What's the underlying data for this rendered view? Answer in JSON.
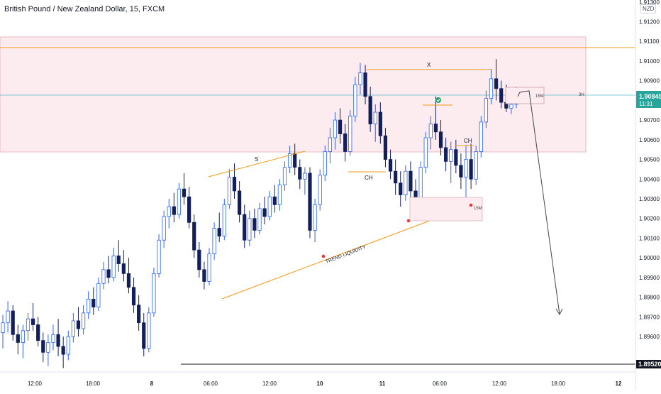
{
  "header": {
    "title": "British Pound / New Zealand Dollar, 15, FXCM",
    "currency": "NZD"
  },
  "colors": {
    "up_candle": "#ffffff",
    "up_border": "#2962ff",
    "down_candle": "#131f5b",
    "annotation_orange": "#f59a14",
    "zone_fill": "#fcebef",
    "zone_border": "#e8b9c3",
    "price_line": "#5fb8c9",
    "current_price_badge": "#26a69a",
    "support_line": "#131722",
    "check_green": "#22a45d",
    "pivot_red": "#e53935"
  },
  "chart_data": {
    "type": "candlestick",
    "symbol": "GBPNZD",
    "timeframe": "15",
    "ylim": [
      1.8942,
      1.9131
    ],
    "y_ticks": [
      "1.91300",
      "1.91200",
      "1.91100",
      "1.91000",
      "1.90900",
      "1.90800",
      "1.90700",
      "1.90600",
      "1.90500",
      "1.90400",
      "1.90300",
      "1.90200",
      "1.90100",
      "1.90000",
      "1.89900",
      "1.89800",
      "1.89700",
      "1.89600"
    ],
    "x_ticks": [
      "12:00",
      "18:00",
      "8",
      "06:00",
      "12:00",
      "10",
      "11",
      "06:00",
      "12:00",
      "18:00",
      "12"
    ],
    "current_price": "1.90845",
    "countdown": "11:31",
    "marked_level": "1.89520",
    "candles": [
      [
        1.8962,
        1.8971,
        1.8954,
        1.8967
      ],
      [
        1.8967,
        1.8978,
        1.8962,
        1.8973
      ],
      [
        1.8973,
        1.8976,
        1.8958,
        1.8961
      ],
      [
        1.8961,
        1.8966,
        1.8951,
        1.8957
      ],
      [
        1.8957,
        1.8966,
        1.8949,
        1.8963
      ],
      [
        1.8963,
        1.8972,
        1.8958,
        1.8969
      ],
      [
        1.8969,
        1.8977,
        1.8963,
        1.8966
      ],
      [
        1.8966,
        1.897,
        1.8955,
        1.8958
      ],
      [
        1.8958,
        1.8962,
        1.8947,
        1.8952
      ],
      [
        1.8952,
        1.8961,
        1.8945,
        1.8957
      ],
      [
        1.8957,
        1.8966,
        1.8953,
        1.8961
      ],
      [
        1.8961,
        1.8969,
        1.895,
        1.8955
      ],
      [
        1.8955,
        1.896,
        1.8944,
        1.8951
      ],
      [
        1.8951,
        1.8963,
        1.8948,
        1.896
      ],
      [
        1.896,
        1.8972,
        1.8957,
        1.8968
      ],
      [
        1.8968,
        1.8975,
        1.896,
        1.8964
      ],
      [
        1.8964,
        1.8976,
        1.8961,
        1.8972
      ],
      [
        1.8972,
        1.8983,
        1.8969,
        1.8979
      ],
      [
        1.8979,
        1.8985,
        1.8971,
        1.8975
      ],
      [
        1.8975,
        1.899,
        1.8973,
        1.8987
      ],
      [
        1.8987,
        1.8998,
        1.8984,
        1.8994
      ],
      [
        1.8994,
        1.9001,
        1.8987,
        1.899
      ],
      [
        1.899,
        1.9005,
        1.8988,
        1.9001
      ],
      [
        1.9001,
        1.9009,
        1.8993,
        1.8997
      ],
      [
        1.8997,
        1.9004,
        1.8988,
        1.8992
      ],
      [
        1.8992,
        1.9,
        1.8982,
        1.8985
      ],
      [
        1.8985,
        1.899,
        1.8972,
        1.8976
      ],
      [
        1.8976,
        1.8981,
        1.8963,
        1.8967
      ],
      [
        1.8967,
        1.8972,
        1.895,
        1.8954
      ],
      [
        1.8954,
        1.8975,
        1.8952,
        1.8972
      ],
      [
        1.8972,
        1.8995,
        1.897,
        1.8992
      ],
      [
        1.8992,
        1.9012,
        1.899,
        1.9009
      ],
      [
        1.9009,
        1.9024,
        1.9005,
        1.9021
      ],
      [
        1.9021,
        1.903,
        1.9015,
        1.9026
      ],
      [
        1.9026,
        1.9033,
        1.9018,
        1.9022
      ],
      [
        1.9022,
        1.9038,
        1.902,
        1.9035
      ],
      [
        1.9035,
        1.9043,
        1.9027,
        1.9031
      ],
      [
        1.9031,
        1.9036,
        1.9015,
        1.9018
      ],
      [
        1.9018,
        1.9022,
        1.9,
        1.9004
      ],
      [
        1.9004,
        1.9008,
        1.899,
        1.8994
      ],
      [
        1.8994,
        1.8998,
        1.8984,
        1.8988
      ],
      [
        1.8988,
        1.9005,
        1.8986,
        1.9002
      ],
      [
        1.9002,
        1.9018,
        1.8999,
        1.9015
      ],
      [
        1.9015,
        1.9023,
        1.9008,
        1.9011
      ],
      [
        1.9011,
        1.903,
        1.9009,
        1.9027
      ],
      [
        1.9027,
        1.9045,
        1.9025,
        1.9041
      ],
      [
        1.9041,
        1.9048,
        1.903,
        1.9034
      ],
      [
        1.9034,
        1.9039,
        1.9018,
        1.9022
      ],
      [
        1.9022,
        1.9027,
        1.9005,
        1.9009
      ],
      [
        1.9009,
        1.9024,
        1.9006,
        1.902
      ],
      [
        1.902,
        1.9025,
        1.901,
        1.9014
      ],
      [
        1.9014,
        1.9028,
        1.9012,
        1.9025
      ],
      [
        1.9025,
        1.9031,
        1.9017,
        1.9021
      ],
      [
        1.9021,
        1.9034,
        1.9019,
        1.9031
      ],
      [
        1.9031,
        1.9037,
        1.9023,
        1.9027
      ],
      [
        1.9027,
        1.904,
        1.9024,
        1.9037
      ],
      [
        1.9037,
        1.9049,
        1.9034,
        1.9046
      ],
      [
        1.9046,
        1.9057,
        1.9043,
        1.9053
      ],
      [
        1.9053,
        1.9058,
        1.9042,
        1.9046
      ],
      [
        1.9046,
        1.905,
        1.9035,
        1.904
      ],
      [
        1.904,
        1.9046,
        1.9032,
        1.9043
      ],
      [
        1.9043,
        1.9046,
        1.901,
        1.9014
      ],
      [
        1.9014,
        1.903,
        1.9008,
        1.9027
      ],
      [
        1.9027,
        1.9045,
        1.9024,
        1.9042
      ],
      [
        1.9042,
        1.9057,
        1.9039,
        1.9054
      ],
      [
        1.9054,
        1.9066,
        1.9048,
        1.9061
      ],
      [
        1.9061,
        1.9074,
        1.9055,
        1.907
      ],
      [
        1.907,
        1.9076,
        1.9058,
        1.9063
      ],
      [
        1.9063,
        1.9068,
        1.9049,
        1.9054
      ],
      [
        1.9054,
        1.9075,
        1.9052,
        1.9072
      ],
      [
        1.9072,
        1.9092,
        1.9069,
        1.9088
      ],
      [
        1.9088,
        1.9099,
        1.9083,
        1.9094
      ],
      [
        1.9094,
        1.9098,
        1.9078,
        1.9082
      ],
      [
        1.9082,
        1.9087,
        1.9064,
        1.9068
      ],
      [
        1.9068,
        1.9078,
        1.9059,
        1.9074
      ],
      [
        1.9074,
        1.9079,
        1.9058,
        1.9062
      ],
      [
        1.9062,
        1.9066,
        1.9046,
        1.905
      ],
      [
        1.905,
        1.9055,
        1.904,
        1.9044
      ],
      [
        1.9044,
        1.905,
        1.9032,
        1.9038
      ],
      [
        1.9038,
        1.9044,
        1.9026,
        1.9032
      ],
      [
        1.9032,
        1.9047,
        1.9029,
        1.9044
      ],
      [
        1.9044,
        1.9049,
        1.903,
        1.9034
      ],
      [
        1.9034,
        1.904,
        1.9021,
        1.9028
      ],
      [
        1.9028,
        1.9049,
        1.9026,
        1.9046
      ],
      [
        1.9046,
        1.9064,
        1.9043,
        1.9061
      ],
      [
        1.9061,
        1.9072,
        1.9055,
        1.9068
      ],
      [
        1.9068,
        1.9082,
        1.906,
        1.9064
      ],
      [
        1.9064,
        1.907,
        1.9052,
        1.9056
      ],
      [
        1.9056,
        1.9061,
        1.9044,
        1.9049
      ],
      [
        1.9049,
        1.9059,
        1.9038,
        1.9055
      ],
      [
        1.9055,
        1.906,
        1.9043,
        1.9047
      ],
      [
        1.9047,
        1.9053,
        1.9035,
        1.9041
      ],
      [
        1.9041,
        1.9057,
        1.903,
        1.905
      ],
      [
        1.905,
        1.9058,
        1.9035,
        1.904
      ],
      [
        1.904,
        1.9057,
        1.9037,
        1.9054
      ],
      [
        1.9054,
        1.9072,
        1.9051,
        1.9069
      ],
      [
        1.9069,
        1.9085,
        1.9066,
        1.9081
      ],
      [
        1.9081,
        1.9096,
        1.9078,
        1.9091
      ],
      [
        1.9091,
        1.9101,
        1.908,
        1.9086
      ],
      [
        1.9086,
        1.909,
        1.9076,
        1.9079
      ],
      [
        1.9079,
        1.9088,
        1.9074,
        1.9076
      ],
      [
        1.9076,
        1.9083,
        1.9073,
        1.9078
      ],
      [
        1.9078,
        1.9087,
        1.9076,
        1.9085
      ]
    ],
    "annotations": {
      "labels": [
        "S",
        "X",
        "CH",
        "CH",
        "15M",
        "15M",
        "3H",
        "TREND LIQUIDITY"
      ]
    }
  }
}
